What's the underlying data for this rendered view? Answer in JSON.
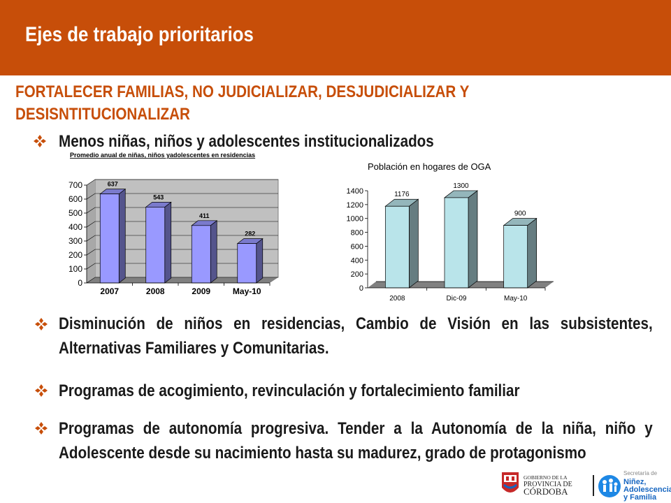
{
  "header": {
    "title": "Ejes de trabajo prioritarios"
  },
  "subtitle": {
    "line1": "FORTALECER FAMILIAS, NO JUDICIALIZAR, DESJUDICIALIZAR Y",
    "line2": "DESISNTITUCIONALIZAR"
  },
  "bullets": {
    "b1": "Menos niñas, niños y adolescentes institucionalizados",
    "b2": "Disminución de niños en residencias, Cambio de Visión en las subsistentes, Alternativas Familiares y Comunitarias.",
    "b3": "Programas de acogimiento, revinculación y fortalecimiento familiar",
    "b4": "Programas de autonomía progresiva. Tender a la Autonomía de la niña, niño y Adolescente desde su nacimiento hasta su madurez, grado de protagonismo"
  },
  "colors": {
    "header": "#c74e09",
    "bullet_diamond": "#c74e09",
    "chart1_bar": "#9999ff",
    "chart2_bar": "#b9e4ea"
  },
  "logos": {
    "gov_line1": "GOBIERNO DE LA",
    "gov_line2": "PROVINCIA DE",
    "gov_line3": "CÓRDOBA",
    "sec_line1": "Secretaría de",
    "sec_line2": "Niñez,",
    "sec_line3": "Adolescencia",
    "sec_line4": "y Familia"
  },
  "chart_data": [
    {
      "type": "bar",
      "title": "Promedio anual de niñas, niños yadolescentes en residencias",
      "categories": [
        "2007",
        "2008",
        "2009",
        "May-10"
      ],
      "values": [
        637,
        543,
        411,
        282
      ],
      "data_labels": [
        "637",
        "543",
        "411",
        "282"
      ],
      "yticks": [
        "0",
        "100",
        "200",
        "300",
        "400",
        "500",
        "600",
        "700"
      ],
      "ylim": [
        0,
        700
      ],
      "grid": true,
      "style": "3d"
    },
    {
      "type": "bar",
      "title": "Población en hogares de OGA",
      "categories": [
        "2008",
        "Dic-09",
        "May-10"
      ],
      "values": [
        1176,
        1300,
        900
      ],
      "data_labels": [
        "1176",
        "1300",
        "900"
      ],
      "yticks": [
        "0",
        "200",
        "400",
        "600",
        "800",
        "1000",
        "1200",
        "1400"
      ],
      "ylim": [
        0,
        1400
      ],
      "grid": false,
      "style": "3d"
    }
  ]
}
